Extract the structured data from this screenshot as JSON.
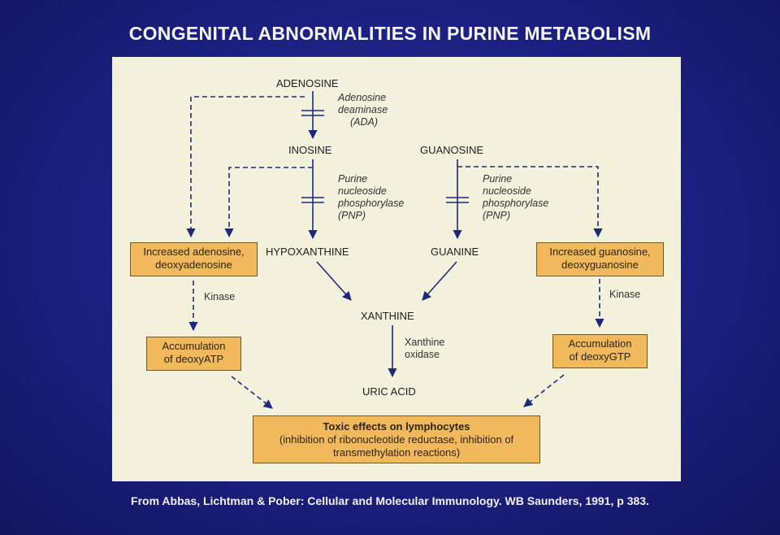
{
  "title": "CONGENITAL ABNORMALITIES IN PURINE METABOLISM",
  "citation": "From Abbas, Lichtman & Pober: Cellular and Molecular Immunology. WB Saunders, 1991, p 383.",
  "nodes": {
    "adenosine": "ADENOSINE",
    "inosine": "INOSINE",
    "guanosine": "GUANOSINE",
    "hypoxanthine": "HYPOXANTHINE",
    "guanine": "GUANINE",
    "xanthine": "XANTHINE",
    "uric_acid": "URIC ACID"
  },
  "enzymes": {
    "ada": [
      "Adenosine",
      "deaminase",
      "(ADA)"
    ],
    "pnp_left": [
      "Purine",
      "nucleoside",
      "phosphorylase",
      "(PNP)"
    ],
    "pnp_right": [
      "Purine",
      "nucleoside",
      "phosphorylase",
      "(PNP)"
    ],
    "xanthine_oxidase": [
      "Xanthine",
      "oxidase"
    ]
  },
  "kinase": {
    "left": "Kinase",
    "right": "Kinase"
  },
  "boxes": {
    "increased_adenosine": [
      "Increased adenosine,",
      "deoxyadenosine"
    ],
    "increased_guanosine": [
      "Increased guanosine,",
      "deoxyguanosine"
    ],
    "accumulation_datp": [
      "Accumulation",
      "of deoxyATP"
    ],
    "accumulation_dgtp": [
      "Accumulation",
      "of deoxyGTP"
    ],
    "toxic_title": "Toxic effects on lymphocytes",
    "toxic_detail": [
      "(inhibition of ribonucleotide reductase, inhibition of",
      "transmethylation reactions)"
    ]
  },
  "colors": {
    "arrow": "#1e2a78",
    "box_fill": "#f2b95c",
    "panel": "#f3f0dc",
    "background": "#1a1f7a"
  }
}
